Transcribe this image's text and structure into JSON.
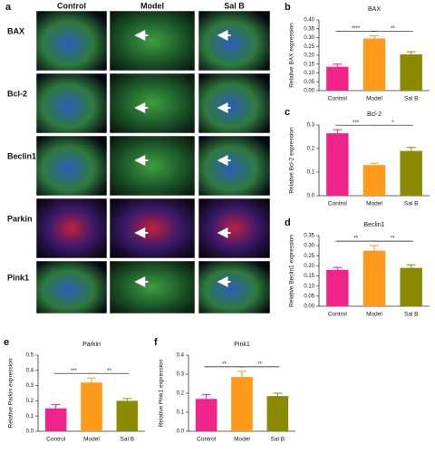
{
  "panel_a": {
    "letter": "a",
    "columns": [
      "Control",
      "Model",
      "Sal B"
    ],
    "rows": [
      "BAX",
      "Bcl-2",
      "Beclin1",
      "Parkin",
      "Pink1"
    ]
  },
  "chart_data": [
    {
      "type": "bar",
      "panel": "b",
      "title": "BAX",
      "y_label": "Relative BAX expression",
      "categories": [
        "Control",
        "Model",
        "Sal B"
      ],
      "values": [
        0.135,
        0.295,
        0.205
      ],
      "errors": [
        0.015,
        0.015,
        0.015
      ],
      "colors": [
        "#f0258c",
        "#ff9a1a",
        "#8c8a00"
      ],
      "ylim": [
        0,
        0.4
      ],
      "yticks": [
        {
          "value": 0,
          "label": "0.00"
        },
        {
          "value": 0.05,
          "label": "0.05"
        },
        {
          "value": 0.1,
          "label": "0.10"
        },
        {
          "value": 0.15,
          "label": "0.15"
        },
        {
          "value": 0.2,
          "label": "0.20"
        },
        {
          "value": 0.25,
          "label": "0.25"
        },
        {
          "value": 0.3,
          "label": "0.30"
        },
        {
          "value": 0.35,
          "label": "0.35"
        },
        {
          "value": 0.4,
          "label": "0.40"
        }
      ],
      "significance": [
        "****",
        "**"
      ]
    },
    {
      "type": "bar",
      "panel": "c",
      "title": "Bcl-2",
      "y_label": "Relative Bcl-2 expression",
      "categories": [
        "Control",
        "Model",
        "Sal B"
      ],
      "values": [
        0.265,
        0.13,
        0.19
      ],
      "errors": [
        0.015,
        0.008,
        0.015
      ],
      "colors": [
        "#f0258c",
        "#ff9a1a",
        "#8c8a00"
      ],
      "ylim": [
        0,
        0.3
      ],
      "yticks": [
        {
          "value": 0,
          "label": "0.0"
        },
        0.1,
        0.2,
        0.3
      ],
      "significance": [
        "***",
        "*"
      ]
    },
    {
      "type": "bar",
      "panel": "d",
      "title": "Beclin1",
      "y_label": "Relative Beclin1 expression",
      "categories": [
        "Control",
        "Model",
        "Sal B"
      ],
      "values": [
        0.18,
        0.275,
        0.19
      ],
      "errors": [
        0.012,
        0.025,
        0.015
      ],
      "colors": [
        "#f0258c",
        "#ff9a1a",
        "#8c8a00"
      ],
      "ylim": [
        0,
        0.35
      ],
      "yticks": [
        {
          "value": 0,
          "label": "0.00"
        },
        {
          "value": 0.05,
          "label": "0.05"
        },
        {
          "value": 0.1,
          "label": "0.10"
        },
        {
          "value": 0.15,
          "label": "0.15"
        },
        {
          "value": 0.2,
          "label": "0.20"
        },
        {
          "value": 0.25,
          "label": "0.25"
        },
        {
          "value": 0.3,
          "label": "0.30"
        },
        {
          "value": 0.35,
          "label": "0.35"
        }
      ],
      "significance": [
        "**",
        "**"
      ]
    },
    {
      "type": "bar",
      "panel": "e",
      "title": "Parkin",
      "y_label": "Relative Parkin expression",
      "categories": [
        "Control",
        "Model",
        "Sal B"
      ],
      "values": [
        0.15,
        0.32,
        0.2
      ],
      "errors": [
        0.025,
        0.03,
        0.015
      ],
      "colors": [
        "#f0258c",
        "#ff9a1a",
        "#8c8a00"
      ],
      "ylim": [
        0,
        0.5
      ],
      "yticks": [
        {
          "value": 0,
          "label": "0.0"
        },
        0.1,
        0.2,
        0.3,
        0.4,
        0.5
      ],
      "significance": [
        "***",
        "**"
      ]
    },
    {
      "type": "bar",
      "panel": "f",
      "title": "Pink1",
      "y_label": "Relative Pink1 expression",
      "categories": [
        "Control",
        "Model",
        "Sal B"
      ],
      "values": [
        0.17,
        0.285,
        0.185
      ],
      "errors": [
        0.022,
        0.03,
        0.015
      ],
      "colors": [
        "#f0258c",
        "#ff9a1a",
        "#8c8a00"
      ],
      "ylim": [
        0,
        0.4
      ],
      "yticks": [
        {
          "value": 0,
          "label": "0.0"
        },
        0.1,
        0.2,
        0.3,
        0.4
      ],
      "significance": [
        "**",
        "**"
      ]
    }
  ]
}
